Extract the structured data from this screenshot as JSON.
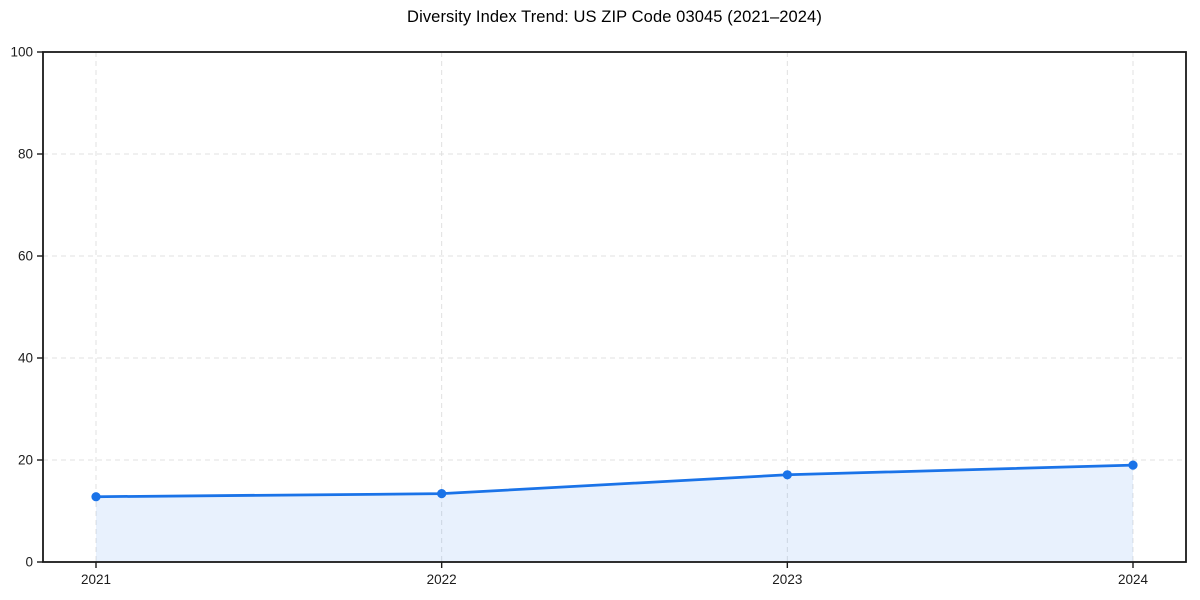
{
  "title": "Diversity Index Trend: US ZIP Code 03045 (2021–2024)",
  "colors": {
    "line": "#1a73e8",
    "fill": "#1a73e8",
    "fill_opacity": 0.1,
    "grid": "#e0e0e0",
    "spine": "#1a1a1a",
    "tick_label": "#1c1c1c",
    "background": "#ffffff"
  },
  "chart_data": {
    "type": "area",
    "title": "Diversity Index Trend: US ZIP Code 03045 (2021–2024)",
    "categories": [
      "2021",
      "2022",
      "2023",
      "2024"
    ],
    "x": [
      2021,
      2022,
      2023,
      2024
    ],
    "series": [
      {
        "name": "Diversity Index",
        "values": [
          12.8,
          13.4,
          17.1,
          19.0
        ]
      }
    ],
    "values": [
      12.8,
      13.4,
      17.1,
      19.0
    ],
    "xlabel": "",
    "ylabel": "",
    "ylim": [
      0,
      100
    ],
    "yticks": [
      0,
      20,
      40,
      60,
      80,
      100
    ],
    "ytick_labels": [
      "0",
      "20",
      "40",
      "60",
      "80",
      "100"
    ],
    "grid": true,
    "grid_style": "dashed",
    "marker": "circle",
    "line_width": 2.75,
    "legend_position": "none"
  }
}
